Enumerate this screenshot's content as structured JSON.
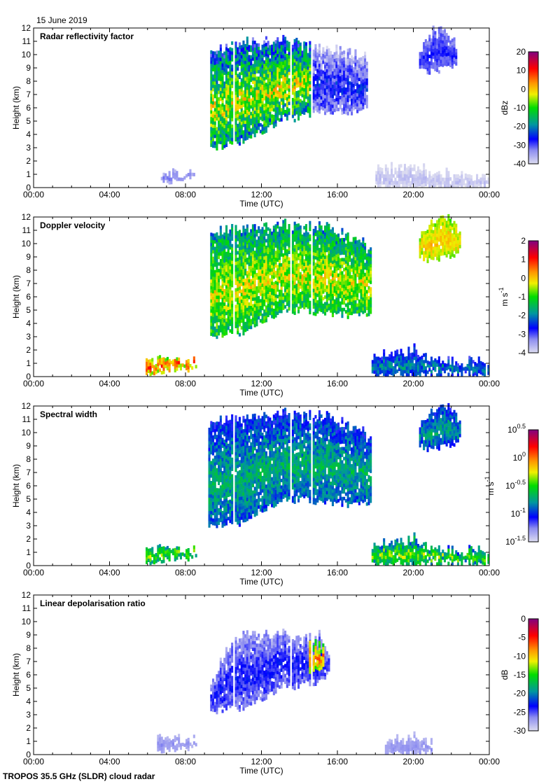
{
  "header": {
    "date": "15 June 2019"
  },
  "footer": {
    "instrument": "TROPOS 35.5 GHz (SLDR) cloud radar"
  },
  "chart_data": [
    {
      "type": "heatmap",
      "title": "Radar reflectivity factor",
      "xlabel": "Time (UTC)",
      "ylabel": "Height (km)",
      "xlim": [
        0,
        24
      ],
      "ylim": [
        0,
        12
      ],
      "xticks": [
        "00:00",
        "04:00",
        "08:00",
        "12:00",
        "16:00",
        "20:00",
        "00:00"
      ],
      "yticks": [
        "0",
        "1",
        "2",
        "3",
        "4",
        "5",
        "6",
        "7",
        "8",
        "9",
        "10",
        "11",
        "12"
      ],
      "colorbar": {
        "unit": "dBz",
        "range": [
          -40,
          20
        ],
        "ticks": [
          "20",
          "10",
          "0",
          "-10",
          "-20",
          "-30",
          "-40"
        ]
      },
      "regions": [
        {
          "t": [
            9.3,
            10,
            11,
            12,
            13,
            14,
            14.6
          ],
          "top": [
            10,
            10.5,
            10.8,
            10.8,
            11,
            10.7,
            10.5
          ],
          "bot": [
            2.8,
            3.2,
            3.5,
            4.2,
            5,
            5.3,
            5.5
          ],
          "vrange": [
            -35,
            5
          ]
        },
        {
          "t": [
            14.6,
            15.5,
            16.5,
            17.6
          ],
          "top": [
            10.5,
            10.2,
            10.3,
            9.5
          ],
          "bot": [
            5.5,
            5.8,
            5.6,
            5.8
          ],
          "vrange": [
            -42,
            -22
          ]
        },
        {
          "t": [
            20.3,
            21,
            21.8,
            22.3
          ],
          "top": [
            10,
            11.8,
            11.5,
            10.5
          ],
          "bot": [
            9,
            8.7,
            9,
            9.3
          ],
          "vrange": [
            -36,
            -26
          ]
        },
        {
          "t": [
            6.7,
            7.5,
            8.4
          ],
          "top": [
            1,
            1,
            1
          ],
          "bot": [
            0.4,
            0.5,
            0.6
          ],
          "vrange": [
            -38,
            -30
          ]
        },
        {
          "t": [
            18,
            20,
            22,
            24
          ],
          "top": [
            1.2,
            1.5,
            0.8,
            0.8
          ],
          "bot": [
            0,
            0,
            0,
            0
          ],
          "vrange": [
            -42,
            -36
          ]
        }
      ],
      "gaps": [
        10.45,
        13.5,
        14.55
      ]
    },
    {
      "type": "heatmap",
      "title": "Doppler velocity",
      "xlabel": "Time (UTC)",
      "ylabel": "Height (km)",
      "xlim": [
        0,
        24
      ],
      "ylim": [
        0,
        12
      ],
      "xticks": [
        "00:00",
        "04:00",
        "08:00",
        "12:00",
        "16:00",
        "20:00",
        "00:00"
      ],
      "yticks": [
        "0",
        "1",
        "2",
        "3",
        "4",
        "5",
        "6",
        "7",
        "8",
        "9",
        "10",
        "11",
        "12"
      ],
      "colorbar": {
        "unit": "m s",
        "unit_exp": "-1",
        "range": [
          -4,
          2
        ],
        "ticks": [
          "2",
          "1",
          "0",
          "-1",
          "-2",
          "-3",
          "-4"
        ]
      },
      "regions": [
        {
          "t": [
            9.3,
            10,
            11,
            12,
            13,
            14,
            15,
            16.5,
            17.8
          ],
          "top": [
            10.5,
            11,
            11,
            11.2,
            11.3,
            11,
            11.3,
            10.5,
            9.5
          ],
          "bot": [
            2.8,
            3.3,
            3.3,
            4.2,
            4.8,
            5,
            4.8,
            4.6,
            4.8
          ],
          "vrange": [
            -2.6,
            0.3
          ]
        },
        {
          "t": [
            20.3,
            21,
            21.8,
            22.5
          ],
          "top": [
            10.2,
            11.8,
            11.8,
            10.5
          ],
          "bot": [
            9,
            8.6,
            9,
            9.5
          ],
          "vrange": [
            -1,
            0.3
          ]
        },
        {
          "t": [
            5.9,
            7,
            8.5
          ],
          "top": [
            1.1,
            1.1,
            1.1
          ],
          "bot": [
            0.3,
            0.4,
            0.5
          ],
          "vrange": [
            -1.5,
            1.5
          ]
        },
        {
          "t": [
            17.8,
            20,
            21,
            24
          ],
          "top": [
            1.3,
            2,
            1,
            1
          ],
          "bot": [
            0,
            0,
            0.2,
            0.2
          ],
          "vrange": [
            -3.2,
            -1.5
          ]
        }
      ],
      "gaps": [
        10.45,
        13.5,
        14.55
      ]
    },
    {
      "type": "heatmap",
      "title": "Spectral width",
      "xlabel": "Time (UTC)",
      "ylabel": "Height (km)",
      "xlim": [
        0,
        24
      ],
      "ylim": [
        0,
        12
      ],
      "xticks": [
        "00:00",
        "04:00",
        "08:00",
        "12:00",
        "16:00",
        "20:00",
        "00:00"
      ],
      "yticks": [
        "0",
        "1",
        "2",
        "3",
        "4",
        "5",
        "6",
        "7",
        "8",
        "9",
        "10",
        "11",
        "12"
      ],
      "colorbar": {
        "unit": "m s",
        "unit_exp": "-1",
        "scale": "log10",
        "range": [
          -1.5,
          0.5
        ],
        "ticks": [
          "10^0.5",
          "10^0",
          "10^-0.5",
          "10^-1",
          "10^-1.5"
        ]
      },
      "regions": [
        {
          "t": [
            9.2,
            10,
            11,
            12,
            13,
            14,
            15,
            16.5,
            17.8
          ],
          "top": [
            10.5,
            11,
            11,
            11.2,
            11.3,
            11,
            11.3,
            10.5,
            9.5
          ],
          "bot": [
            2.8,
            3.2,
            3.2,
            4.2,
            4.8,
            5,
            4.8,
            4.6,
            4.8
          ],
          "vrange": [
            -1.2,
            -0.55
          ]
        },
        {
          "t": [
            20.3,
            21,
            21.8,
            22.5
          ],
          "top": [
            10.2,
            11.8,
            11.8,
            10.5
          ],
          "bot": [
            9,
            8.6,
            9,
            9.5
          ],
          "vrange": [
            -1.2,
            -0.6
          ]
        },
        {
          "t": [
            5.9,
            7,
            8.5
          ],
          "top": [
            1.1,
            1.1,
            1.1
          ],
          "bot": [
            0.3,
            0.4,
            0.5
          ],
          "vrange": [
            -1,
            -0.2
          ]
        },
        {
          "t": [
            17.8,
            20,
            21,
            24
          ],
          "top": [
            1.3,
            2,
            1,
            1
          ],
          "bot": [
            0,
            0,
            0.2,
            0.2
          ],
          "vrange": [
            -1.1,
            -0.2
          ]
        }
      ],
      "gaps": [
        10.45,
        13.5,
        14.55
      ]
    },
    {
      "type": "heatmap",
      "title": "Linear depolarisation ratio",
      "xlabel": "Time (UTC)",
      "ylabel": "Height (km)",
      "xlim": [
        0,
        24
      ],
      "ylim": [
        0,
        12
      ],
      "xticks": [
        "00:00",
        "04:00",
        "08:00",
        "12:00",
        "16:00",
        "20:00",
        "00:00"
      ],
      "yticks": [
        "0",
        "1",
        "2",
        "3",
        "4",
        "5",
        "6",
        "7",
        "8",
        "9",
        "10",
        "11",
        "12"
      ],
      "colorbar": {
        "unit": "dB",
        "range": [
          -30,
          0
        ],
        "ticks": [
          "0",
          "-5",
          "-10",
          "-15",
          "-20",
          "-25",
          "-30"
        ]
      },
      "regions": [
        {
          "t": [
            9.3,
            10,
            11,
            12,
            13,
            14,
            15,
            15.5
          ],
          "top": [
            5,
            7.5,
            9,
            8.8,
            9,
            8.5,
            9,
            7
          ],
          "bot": [
            3,
            3.5,
            3.5,
            4.2,
            5,
            5.2,
            5.5,
            6
          ],
          "vrange": [
            -29,
            -22
          ]
        },
        {
          "t": [
            14.5,
            15.2
          ],
          "top": [
            8.5,
            8
          ],
          "bot": [
            6,
            6.5
          ],
          "vrange": [
            -18,
            -5
          ]
        },
        {
          "t": [
            6.5,
            7.5,
            8.5
          ],
          "top": [
            1,
            1,
            1
          ],
          "bot": [
            0.3,
            0.3,
            0.5
          ],
          "vrange": [
            -29,
            -26
          ]
        },
        {
          "t": [
            18.5,
            20,
            21
          ],
          "top": [
            0.8,
            1.3,
            0.6
          ],
          "bot": [
            0,
            0,
            0.2
          ],
          "vrange": [
            -29,
            -26
          ]
        }
      ],
      "gaps": [
        10.45,
        13.5,
        14.55
      ]
    }
  ]
}
